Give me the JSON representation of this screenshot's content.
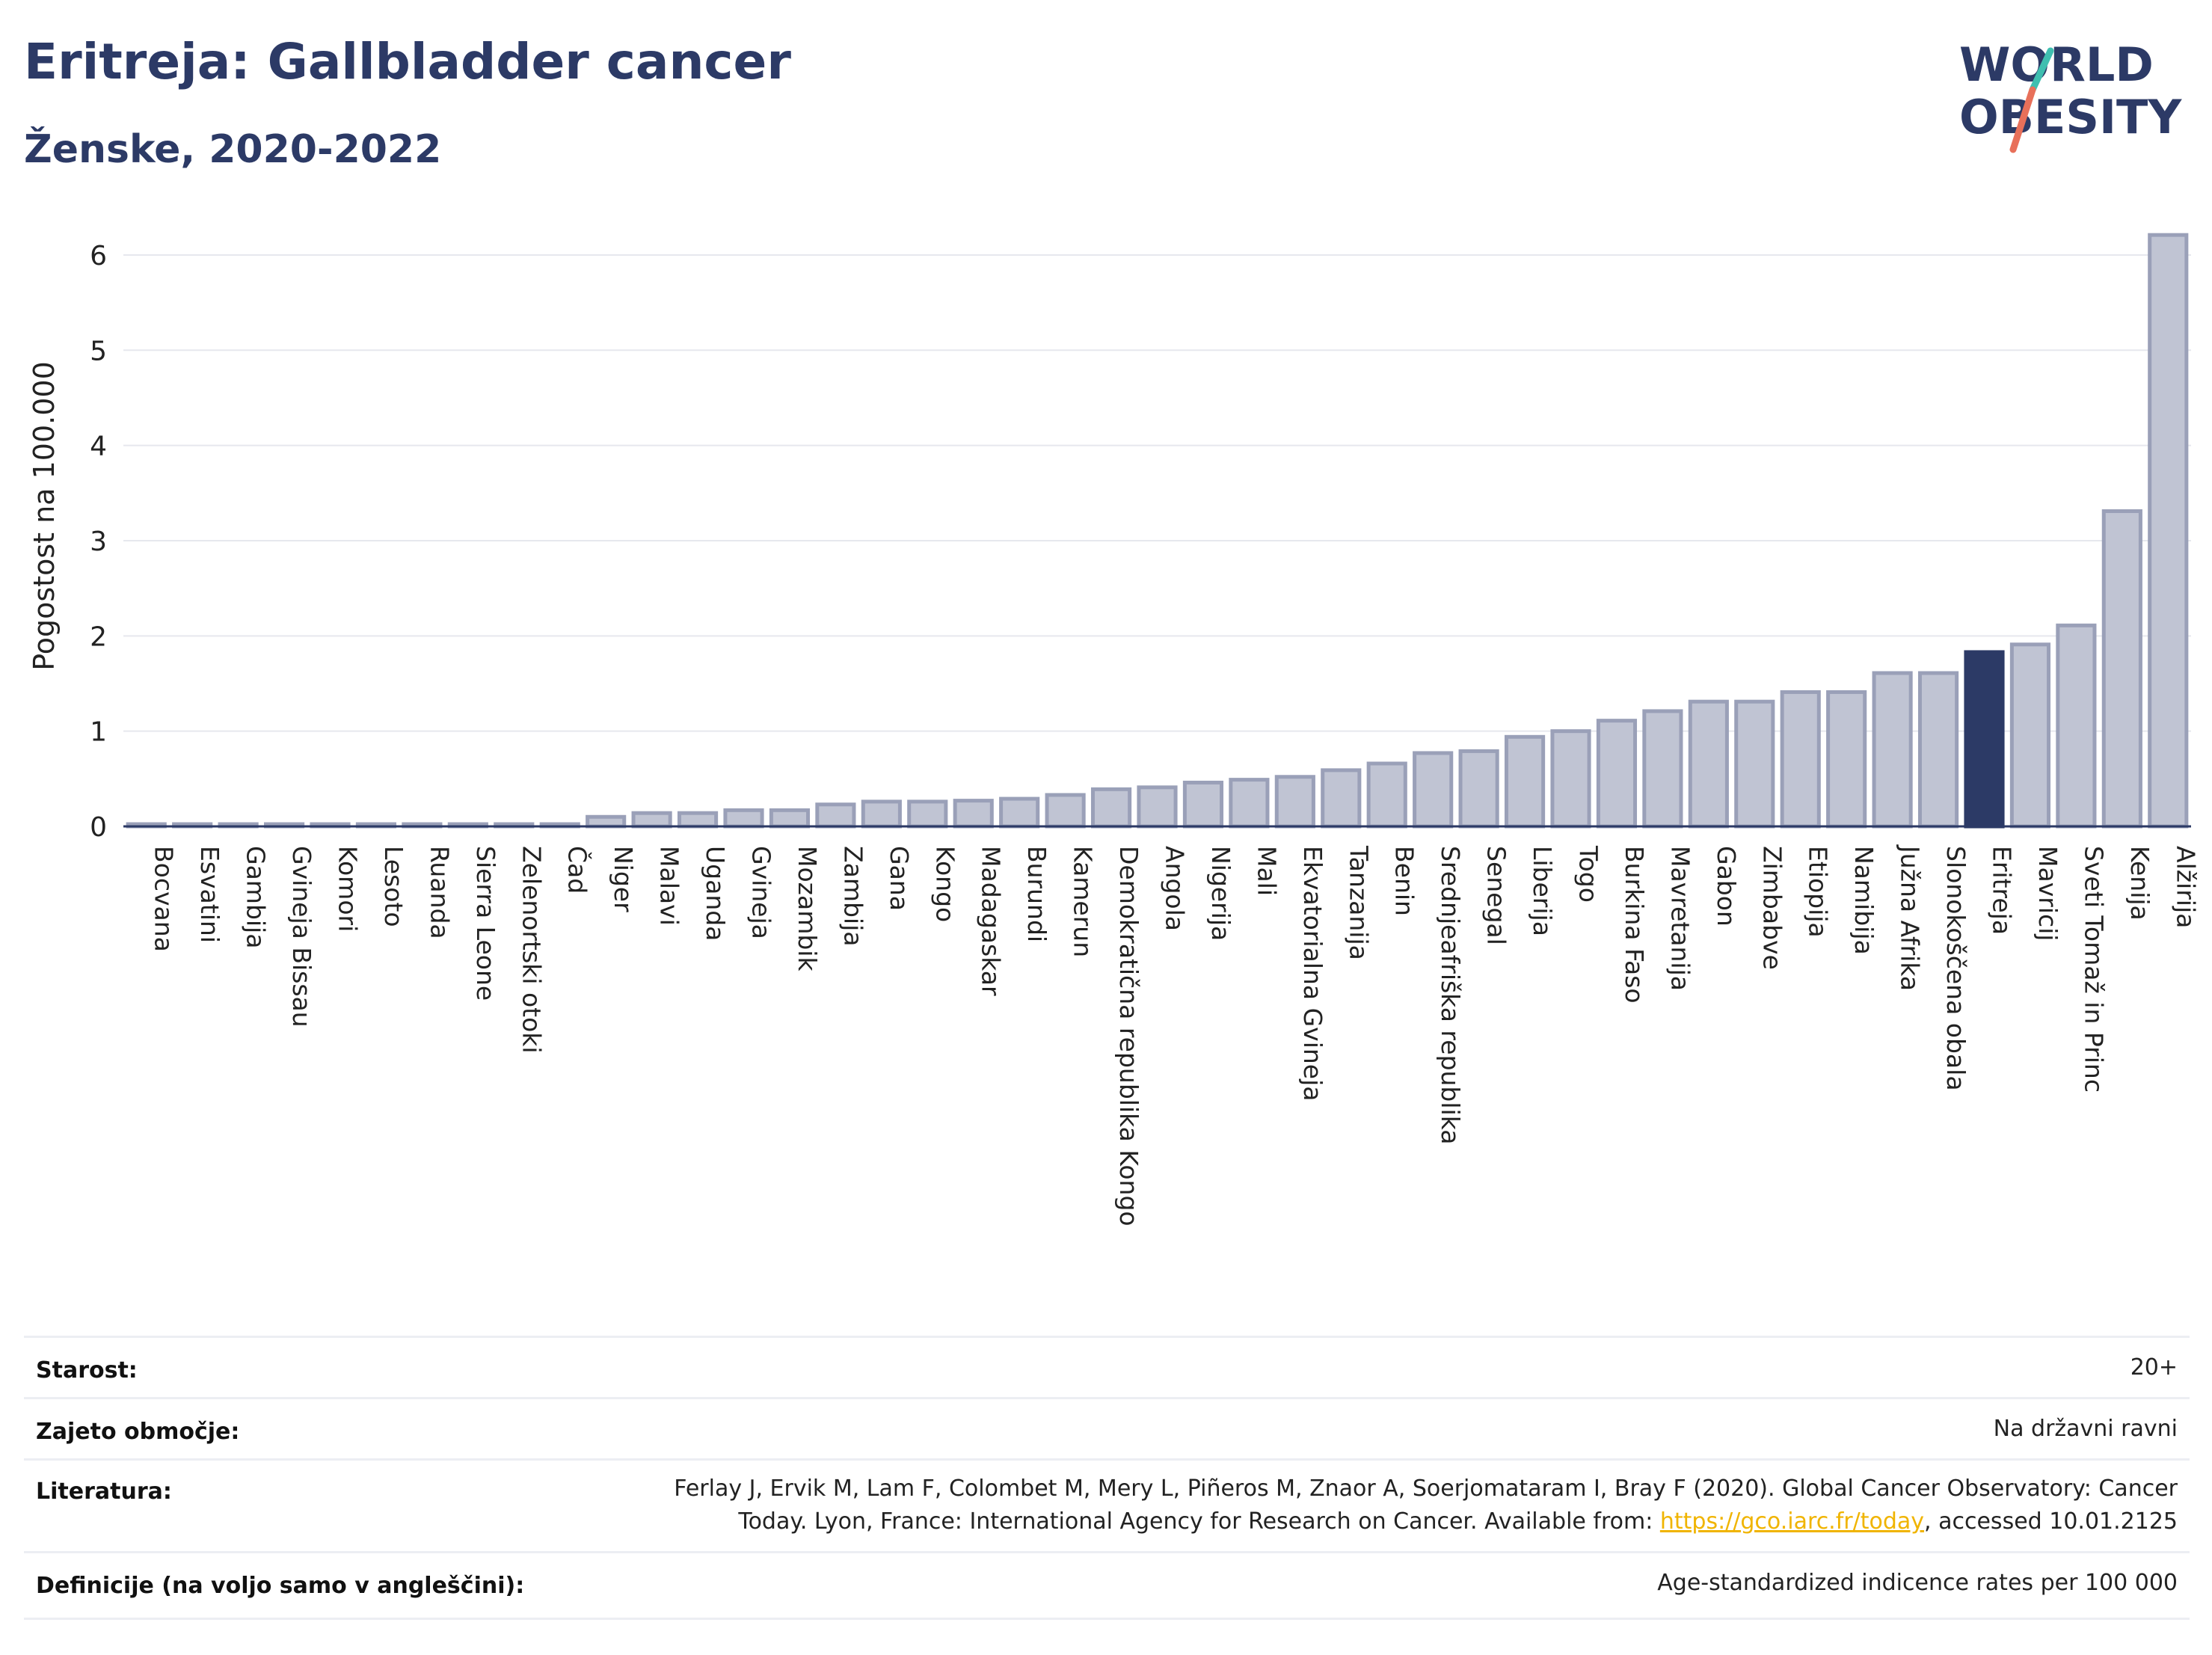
{
  "header": {
    "title": "Eritreja: Gallbladder cancer",
    "subtitle": "Ženske, 2020-2022"
  },
  "logo": {
    "line1": "WORLD",
    "line2": "OBESITY",
    "accent_teal": "#3fbfb0",
    "accent_red": "#e8705a",
    "text_color": "#2c3a66"
  },
  "chart_data": {
    "type": "bar",
    "ylabel": "Pogostost na 100.000",
    "ylim": [
      0,
      6.4
    ],
    "yticks": [
      0,
      1,
      2,
      3,
      4,
      5,
      6
    ],
    "grid": true,
    "highlight": "Eritreja",
    "colors": {
      "bar": "#c0c4d3",
      "bar_edge": "#9aa0b8",
      "highlight": "#2c3a66"
    },
    "categories": [
      "Bocvana",
      "Esvatini",
      "Gambija",
      "Gvineja Bissau",
      "Komori",
      "Lesoto",
      "Ruanda",
      "Sierra Leone",
      "Zelenortski otoki",
      "Čad",
      "Niger",
      "Malavi",
      "Uganda",
      "Gvineja",
      "Mozambik",
      "Zambija",
      "Gana",
      "Kongo",
      "Madagaskar",
      "Burundi",
      "Kamerun",
      "Demokratična republika Kongo",
      "Angola",
      "Nigerija",
      "Mali",
      "Ekvatorialna Gvineja",
      "Tanzanija",
      "Benin",
      "Srednjeafriška republika",
      "Senegal",
      "Liberija",
      "Togo",
      "Burkina Faso",
      "Mavretanija",
      "Gabon",
      "Zimbabve",
      "Etiopija",
      "Namibija",
      "Južna Afrika",
      "Slonokoščena obala",
      "Eritreja",
      "Mavricij",
      "Sveti Tomaž in Princ",
      "Kenija",
      "Alžirija"
    ],
    "values": [
      0.02,
      0.02,
      0.02,
      0.02,
      0.02,
      0.02,
      0.02,
      0.02,
      0.02,
      0.02,
      0.1,
      0.14,
      0.14,
      0.17,
      0.17,
      0.23,
      0.26,
      0.26,
      0.27,
      0.29,
      0.33,
      0.39,
      0.41,
      0.46,
      0.49,
      0.52,
      0.59,
      0.66,
      0.77,
      0.79,
      0.94,
      1.0,
      1.11,
      1.21,
      1.31,
      1.31,
      1.41,
      1.41,
      1.61,
      1.61,
      1.83,
      1.91,
      2.11,
      3.31,
      6.21
    ]
  },
  "info": {
    "age_label": "Starost:",
    "age_value": "20+",
    "area_label": "Zajeto območje:",
    "area_value": "Na državni ravni",
    "lit_label": "Literatura:",
    "lit_line1": "Ferlay J, Ervik M, Lam F, Colombet M, Mery L, Piñeros M, Znaor A, Soerjomataram I, Bray F (2020). Global Cancer Observatory: Cancer",
    "lit_line2_pre": "Today. Lyon, France: International Agency for Research on Cancer. Available from: ",
    "lit_link": "https://gco.iarc.fr/today",
    "lit_line2_post": ", accessed 10.01.2125",
    "def_label": "Definicije (na voljo samo v angleščini):",
    "def_value": "Age-standardized indicence rates per 100 000"
  }
}
